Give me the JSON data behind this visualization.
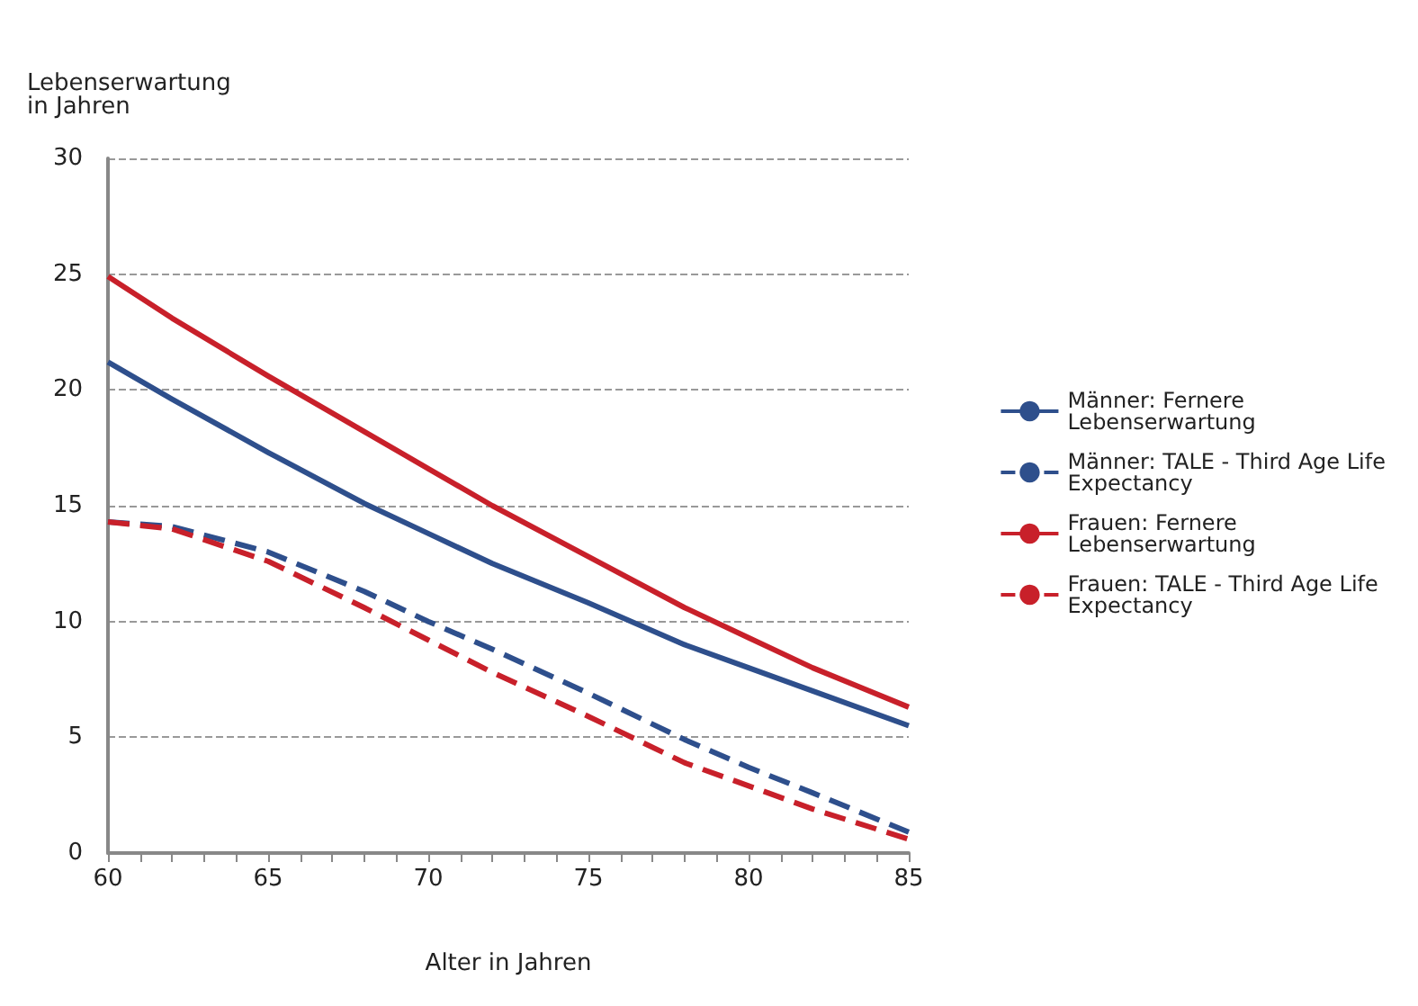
{
  "chart_data": {
    "type": "line",
    "ylabel": "Lebenserwartung\nin Jahren",
    "xlabel": "Alter in Jahren",
    "x": [
      60,
      62,
      65,
      68,
      70,
      72,
      75,
      78,
      80,
      82,
      85
    ],
    "series": [
      {
        "name": "Männer: Fernere\nLebenserwartung",
        "color": "#2e4f8c",
        "line_style": "solid",
        "values": [
          21.2,
          19.6,
          17.3,
          15.1,
          13.8,
          12.5,
          10.8,
          9.0,
          8.0,
          7.0,
          5.5
        ]
      },
      {
        "name": "Männer: TALE - Third Age Life\nExpectancy",
        "color": "#2e4f8c",
        "line_style": "dashed",
        "values": [
          14.3,
          14.1,
          13.0,
          11.3,
          10.0,
          8.8,
          6.9,
          4.9,
          3.7,
          2.6,
          0.9
        ]
      },
      {
        "name": "Frauen: Fernere\nLebenserwartung",
        "color": "#c8202a",
        "line_style": "solid",
        "values": [
          24.9,
          23.1,
          20.6,
          18.2,
          16.6,
          15.0,
          12.8,
          10.6,
          9.3,
          8.0,
          6.3
        ]
      },
      {
        "name": "Frauen: TALE - Third Age Life\nExpectancy",
        "color": "#c8202a",
        "line_style": "dashed",
        "values": [
          14.3,
          14.0,
          12.6,
          10.6,
          9.2,
          7.8,
          5.9,
          3.9,
          2.9,
          1.9,
          0.6
        ]
      }
    ],
    "xlim": [
      60,
      85
    ],
    "xticks": [
      60,
      {
        "value": 61,
        "label": null
      },
      {
        "value": 62,
        "label": null
      },
      {
        "value": 63,
        "label": null
      },
      {
        "value": 64,
        "label": null
      },
      65,
      {
        "value": 66,
        "label": null
      },
      {
        "value": 67,
        "label": null
      },
      {
        "value": 68,
        "label": null
      },
      {
        "value": 69,
        "label": null
      },
      70,
      {
        "value": 71,
        "label": null
      },
      {
        "value": 72,
        "label": null
      },
      {
        "value": 73,
        "label": null
      },
      {
        "value": 74,
        "label": null
      },
      75,
      {
        "value": 76,
        "label": null
      },
      {
        "value": 77,
        "label": null
      },
      {
        "value": 78,
        "label": null
      },
      {
        "value": 79,
        "label": null
      },
      80,
      {
        "value": 81,
        "label": null
      },
      {
        "value": 82,
        "label": null
      },
      {
        "value": 83,
        "label": null
      },
      {
        "value": 84,
        "label": null
      },
      85
    ],
    "ylim": [
      0,
      30
    ],
    "yticks": [
      0,
      5,
      10,
      15,
      20,
      25,
      30
    ],
    "grid": "y",
    "legend": "right",
    "marker": "none"
  }
}
